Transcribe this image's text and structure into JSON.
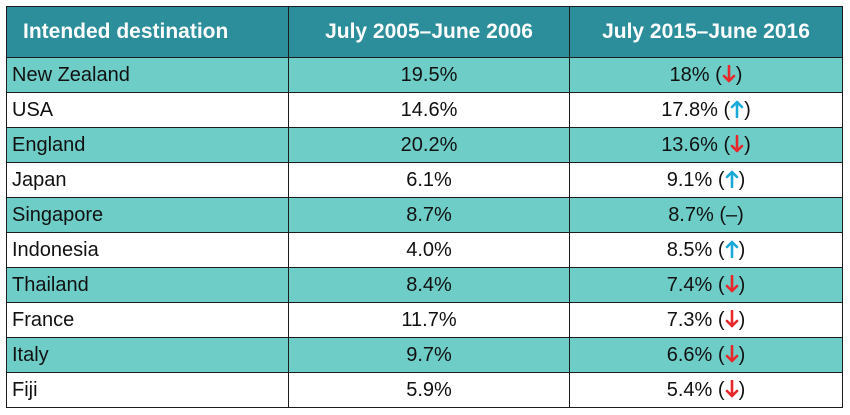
{
  "chart_data": {
    "type": "table",
    "columns": [
      "Intended destination",
      "July 2005–June 2006",
      "July 2015–June 2016"
    ],
    "rows": [
      {
        "destination": "New Zealand",
        "p2005": "19.5%",
        "p2015": "18%",
        "trend": "down"
      },
      {
        "destination": "USA",
        "p2005": "14.6%",
        "p2015": "17.8%",
        "trend": "up"
      },
      {
        "destination": "England",
        "p2005": "20.2%",
        "p2015": "13.6%",
        "trend": "down"
      },
      {
        "destination": "Japan",
        "p2005": "6.1%",
        "p2015": "9.1%",
        "trend": "up"
      },
      {
        "destination": "Singapore",
        "p2005": "8.7%",
        "p2015": "8.7%",
        "trend": "same"
      },
      {
        "destination": "Indonesia",
        "p2005": "4.0%",
        "p2015": "8.5%",
        "trend": "up"
      },
      {
        "destination": "Thailand",
        "p2005": "8.4%",
        "p2015": "7.4%",
        "trend": "down"
      },
      {
        "destination": "France",
        "p2005": "11.7%",
        "p2015": "7.3%",
        "trend": "down"
      },
      {
        "destination": "Italy",
        "p2005": "9.7%",
        "p2015": "6.6%",
        "trend": "down"
      },
      {
        "destination": "Fiji",
        "p2005": "5.9%",
        "p2015": "5.4%",
        "trend": "down"
      }
    ],
    "same_symbol": "–"
  },
  "colors": {
    "header_bg": "#2b8e9a",
    "row_teal": "#6ecdc7",
    "row_white": "#ffffff",
    "arrow_down": "#e8272a",
    "arrow_up": "#1aa8d8"
  }
}
